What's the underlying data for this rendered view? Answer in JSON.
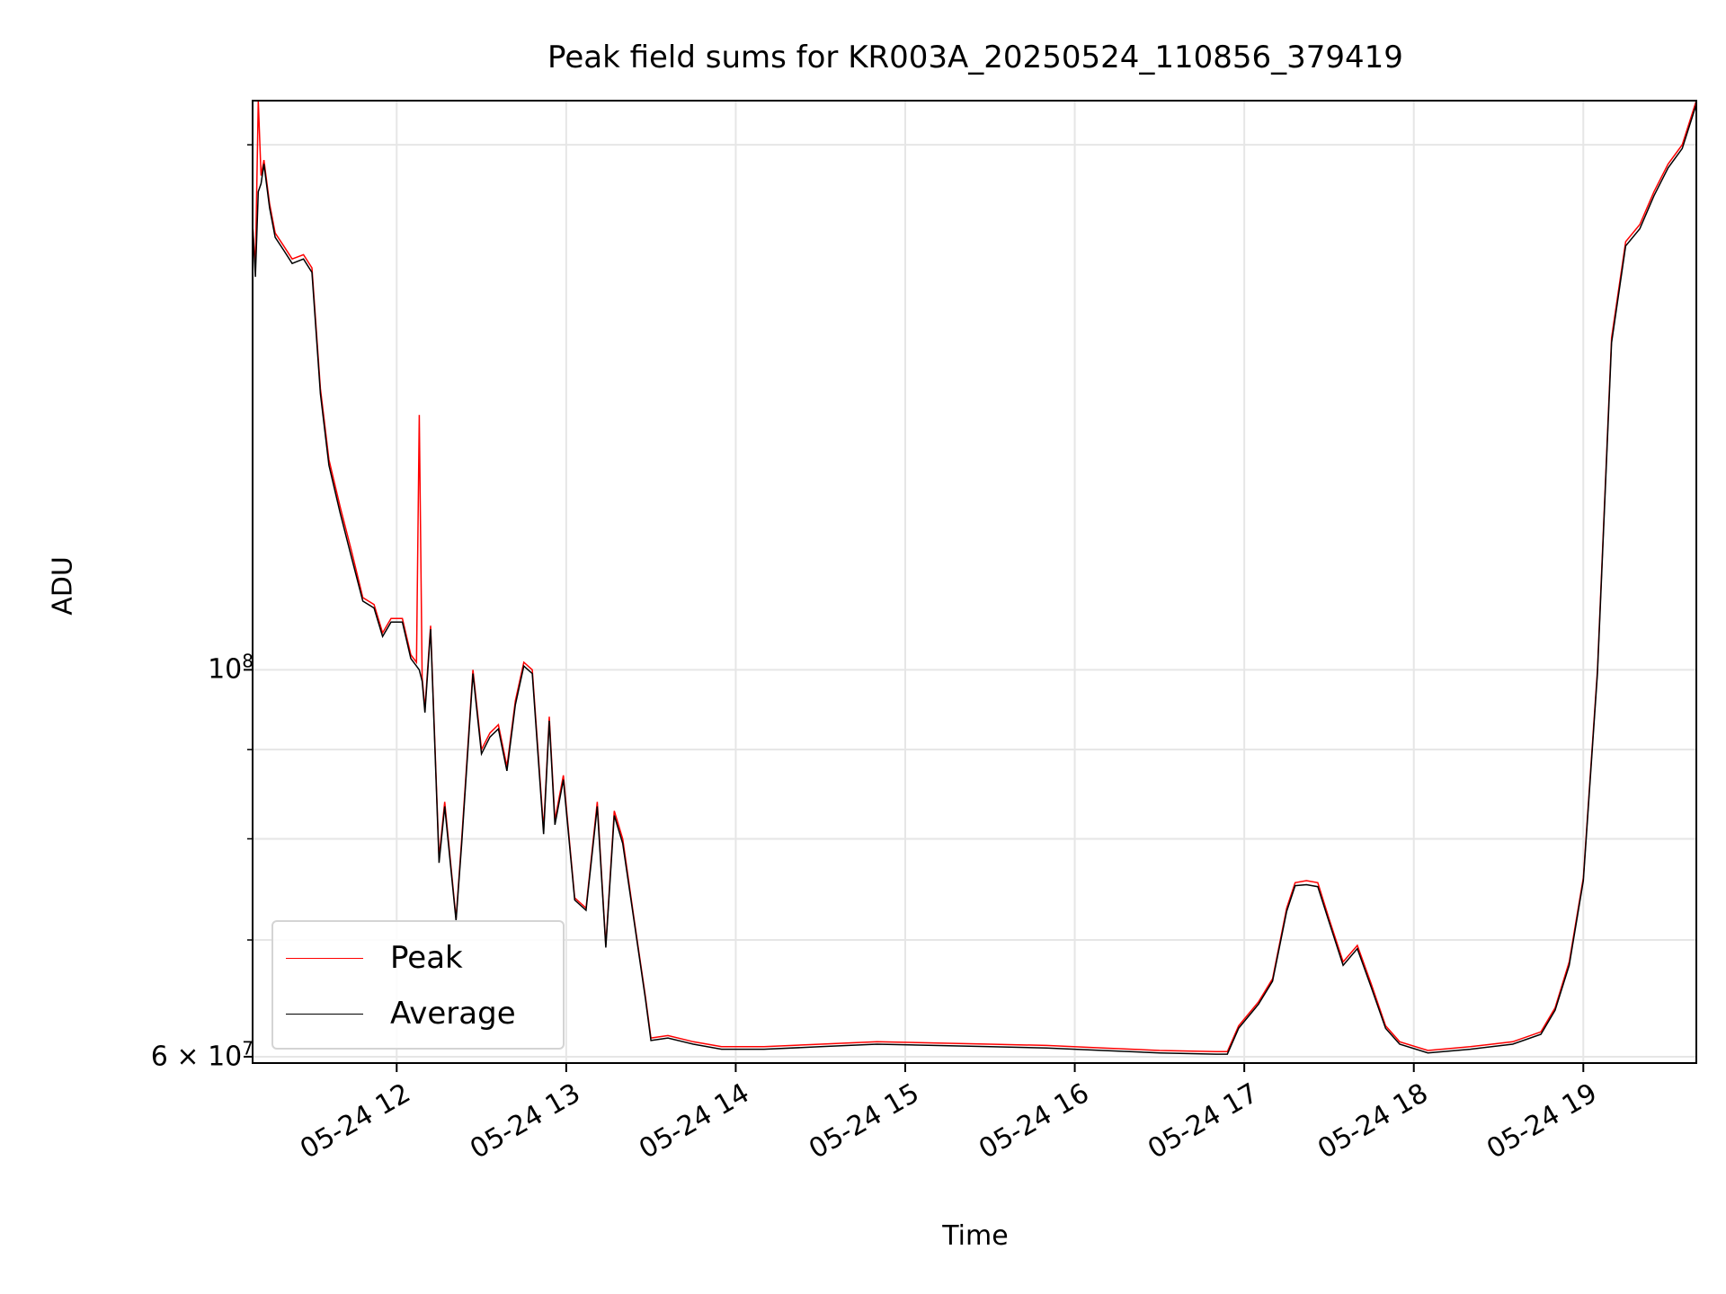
{
  "chart_data": {
    "type": "line",
    "title": "Peak field sums for KR003A_20250524_110856_379419",
    "xlabel": "Time",
    "ylabel": "ADU",
    "yscale": "log",
    "xlim": [
      "05-24 11:09",
      "05-24 19:40"
    ],
    "ylim": [
      59500000,
      212000000
    ],
    "x_ticks": [
      "05-24 12",
      "05-24 13",
      "05-24 14",
      "05-24 15",
      "05-24 16",
      "05-24 17",
      "05-24 18",
      "05-24 19"
    ],
    "y_ticks": [
      {
        "value": 100000000,
        "label_base": "10",
        "label_exp": "8"
      },
      {
        "value": 60000000,
        "label_base": "6 × 10",
        "label_exp": "7"
      }
    ],
    "grid": true,
    "legend_position": "lower-left",
    "series": [
      {
        "name": "Peak",
        "color": "#ff0000",
        "points": [
          [
            "05-24 11:09",
            180000000
          ],
          [
            "05-24 11:10",
            170000000
          ],
          [
            "05-24 11:11",
            212000000
          ],
          [
            "05-24 11:12",
            192000000
          ],
          [
            "05-24 11:13",
            196000000
          ],
          [
            "05-24 11:15",
            185000000
          ],
          [
            "05-24 11:17",
            178000000
          ],
          [
            "05-24 11:20",
            175000000
          ],
          [
            "05-24 11:23",
            172000000
          ],
          [
            "05-24 11:27",
            173000000
          ],
          [
            "05-24 11:30",
            170000000
          ],
          [
            "05-24 11:33",
            145000000
          ],
          [
            "05-24 11:36",
            132000000
          ],
          [
            "05-24 11:40",
            124000000
          ],
          [
            "05-24 11:44",
            117000000
          ],
          [
            "05-24 11:48",
            110000000
          ],
          [
            "05-24 11:52",
            109000000
          ],
          [
            "05-24 11:55",
            105000000
          ],
          [
            "05-24 11:58",
            107000000
          ],
          [
            "05-24 12:02",
            107000000
          ],
          [
            "05-24 12:05",
            102000000
          ],
          [
            "05-24 12:07",
            101000000
          ],
          [
            "05-24 12:08",
            140000000
          ],
          [
            "05-24 12:09",
            99000000
          ],
          [
            "05-24 12:10",
            95000000
          ],
          [
            "05-24 12:12",
            106000000
          ],
          [
            "05-24 12:15",
            78000000
          ],
          [
            "05-24 12:17",
            84000000
          ],
          [
            "05-24 12:21",
            72000000
          ],
          [
            "05-24 12:23",
            80000000
          ],
          [
            "05-24 12:27",
            100000000
          ],
          [
            "05-24 12:30",
            90000000
          ],
          [
            "05-24 12:33",
            92000000
          ],
          [
            "05-24 12:36",
            93000000
          ],
          [
            "05-24 12:39",
            88000000
          ],
          [
            "05-24 12:42",
            96000000
          ],
          [
            "05-24 12:45",
            101000000
          ],
          [
            "05-24 12:48",
            100000000
          ],
          [
            "05-24 12:52",
            81000000
          ],
          [
            "05-24 12:54",
            94000000
          ],
          [
            "05-24 12:56",
            82000000
          ],
          [
            "05-24 12:59",
            87000000
          ],
          [
            "05-24 13:03",
            74000000
          ],
          [
            "05-24 13:07",
            73000000
          ],
          [
            "05-24 13:11",
            84000000
          ],
          [
            "05-24 13:14",
            69500000
          ],
          [
            "05-24 13:17",
            83000000
          ],
          [
            "05-24 13:20",
            80000000
          ],
          [
            "05-24 13:24",
            72000000
          ],
          [
            "05-24 13:28",
            65000000
          ],
          [
            "05-24 13:30",
            61500000
          ],
          [
            "05-24 13:36",
            61700000
          ],
          [
            "05-24 13:45",
            61200000
          ],
          [
            "05-24 13:55",
            60800000
          ],
          [
            "05-24 14:10",
            60800000
          ],
          [
            "05-24 14:30",
            61000000
          ],
          [
            "05-24 14:50",
            61200000
          ],
          [
            "05-24 15:10",
            61100000
          ],
          [
            "05-24 15:30",
            61000000
          ],
          [
            "05-24 15:50",
            60900000
          ],
          [
            "05-24 16:10",
            60700000
          ],
          [
            "05-24 16:30",
            60500000
          ],
          [
            "05-24 16:50",
            60400000
          ],
          [
            "05-24 16:54",
            60400000
          ],
          [
            "05-24 16:58",
            62500000
          ],
          [
            "05-24 17:05",
            64500000
          ],
          [
            "05-24 17:10",
            66500000
          ],
          [
            "05-24 17:15",
            73000000
          ],
          [
            "05-24 17:18",
            75500000
          ],
          [
            "05-24 17:22",
            75700000
          ],
          [
            "05-24 17:26",
            75500000
          ],
          [
            "05-24 17:30",
            72000000
          ],
          [
            "05-24 17:35",
            68000000
          ],
          [
            "05-24 17:40",
            69500000
          ],
          [
            "05-24 17:45",
            66000000
          ],
          [
            "05-24 17:50",
            62500000
          ],
          [
            "05-24 17:55",
            61200000
          ],
          [
            "05-24 18:05",
            60500000
          ],
          [
            "05-24 18:20",
            60800000
          ],
          [
            "05-24 18:35",
            61200000
          ],
          [
            "05-24 18:45",
            62000000
          ],
          [
            "05-24 18:50",
            64000000
          ],
          [
            "05-24 18:55",
            68000000
          ],
          [
            "05-24 19:00",
            76000000
          ],
          [
            "05-24 19:05",
            100000000
          ],
          [
            "05-24 19:10",
            155000000
          ],
          [
            "05-24 19:15",
            176000000
          ],
          [
            "05-24 19:20",
            180000000
          ],
          [
            "05-24 19:25",
            188000000
          ],
          [
            "05-24 19:30",
            195000000
          ],
          [
            "05-24 19:35",
            200000000
          ],
          [
            "05-24 19:40",
            212000000
          ]
        ]
      },
      {
        "name": "Average",
        "color": "#000000",
        "points": [
          [
            "05-24 11:09",
            180000000
          ],
          [
            "05-24 11:10",
            168000000
          ],
          [
            "05-24 11:11",
            188000000
          ],
          [
            "05-24 11:12",
            190000000
          ],
          [
            "05-24 11:13",
            195000000
          ],
          [
            "05-24 11:15",
            184000000
          ],
          [
            "05-24 11:17",
            177000000
          ],
          [
            "05-24 11:20",
            174000000
          ],
          [
            "05-24 11:23",
            171000000
          ],
          [
            "05-24 11:27",
            172000000
          ],
          [
            "05-24 11:30",
            169000000
          ],
          [
            "05-24 11:33",
            144000000
          ],
          [
            "05-24 11:36",
            131000000
          ],
          [
            "05-24 11:40",
            123000000
          ],
          [
            "05-24 11:44",
            116000000
          ],
          [
            "05-24 11:48",
            109500000
          ],
          [
            "05-24 11:52",
            108500000
          ],
          [
            "05-24 11:55",
            104500000
          ],
          [
            "05-24 11:58",
            106500000
          ],
          [
            "05-24 12:02",
            106500000
          ],
          [
            "05-24 12:05",
            101500000
          ],
          [
            "05-24 12:07",
            100500000
          ],
          [
            "05-24 12:08",
            100000000
          ],
          [
            "05-24 12:09",
            98500000
          ],
          [
            "05-24 12:10",
            94500000
          ],
          [
            "05-24 12:12",
            105500000
          ],
          [
            "05-24 12:15",
            77500000
          ],
          [
            "05-24 12:17",
            83500000
          ],
          [
            "05-24 12:21",
            71800000
          ],
          [
            "05-24 12:23",
            79500000
          ],
          [
            "05-24 12:27",
            99500000
          ],
          [
            "05-24 12:30",
            89500000
          ],
          [
            "05-24 12:33",
            91500000
          ],
          [
            "05-24 12:36",
            92500000
          ],
          [
            "05-24 12:39",
            87500000
          ],
          [
            "05-24 12:42",
            95500000
          ],
          [
            "05-24 12:45",
            100500000
          ],
          [
            "05-24 12:48",
            99500000
          ],
          [
            "05-24 12:52",
            80500000
          ],
          [
            "05-24 12:54",
            93500000
          ],
          [
            "05-24 12:56",
            81500000
          ],
          [
            "05-24 12:59",
            86500000
          ],
          [
            "05-24 13:03",
            73800000
          ],
          [
            "05-24 13:07",
            72800000
          ],
          [
            "05-24 13:11",
            83500000
          ],
          [
            "05-24 13:14",
            69300000
          ],
          [
            "05-24 13:17",
            82500000
          ],
          [
            "05-24 13:20",
            79500000
          ],
          [
            "05-24 13:24",
            71800000
          ],
          [
            "05-24 13:28",
            64800000
          ],
          [
            "05-24 13:30",
            61300000
          ],
          [
            "05-24 13:36",
            61500000
          ],
          [
            "05-24 13:45",
            61000000
          ],
          [
            "05-24 13:55",
            60600000
          ],
          [
            "05-24 14:10",
            60600000
          ],
          [
            "05-24 14:30",
            60800000
          ],
          [
            "05-24 14:50",
            61000000
          ],
          [
            "05-24 15:10",
            60900000
          ],
          [
            "05-24 15:30",
            60800000
          ],
          [
            "05-24 15:50",
            60700000
          ],
          [
            "05-24 16:10",
            60500000
          ],
          [
            "05-24 16:30",
            60300000
          ],
          [
            "05-24 16:50",
            60200000
          ],
          [
            "05-24 16:54",
            60200000
          ],
          [
            "05-24 16:58",
            62300000
          ],
          [
            "05-24 17:05",
            64300000
          ],
          [
            "05-24 17:10",
            66300000
          ],
          [
            "05-24 17:15",
            72700000
          ],
          [
            "05-24 17:18",
            75200000
          ],
          [
            "05-24 17:22",
            75300000
          ],
          [
            "05-24 17:26",
            75100000
          ],
          [
            "05-24 17:30",
            71700000
          ],
          [
            "05-24 17:35",
            67700000
          ],
          [
            "05-24 17:40",
            69200000
          ],
          [
            "05-24 17:45",
            65700000
          ],
          [
            "05-24 17:50",
            62300000
          ],
          [
            "05-24 17:55",
            61000000
          ],
          [
            "05-24 18:05",
            60300000
          ],
          [
            "05-24 18:20",
            60600000
          ],
          [
            "05-24 18:35",
            61000000
          ],
          [
            "05-24 18:45",
            61800000
          ],
          [
            "05-24 18:50",
            63800000
          ],
          [
            "05-24 18:55",
            67700000
          ],
          [
            "05-24 19:00",
            75700000
          ],
          [
            "05-24 19:05",
            99500000
          ],
          [
            "05-24 19:10",
            154000000
          ],
          [
            "05-24 19:15",
            175000000
          ],
          [
            "05-24 19:20",
            179000000
          ],
          [
            "05-24 19:25",
            187000000
          ],
          [
            "05-24 19:30",
            194000000
          ],
          [
            "05-24 19:35",
            199000000
          ],
          [
            "05-24 19:40",
            211000000
          ]
        ]
      }
    ]
  }
}
